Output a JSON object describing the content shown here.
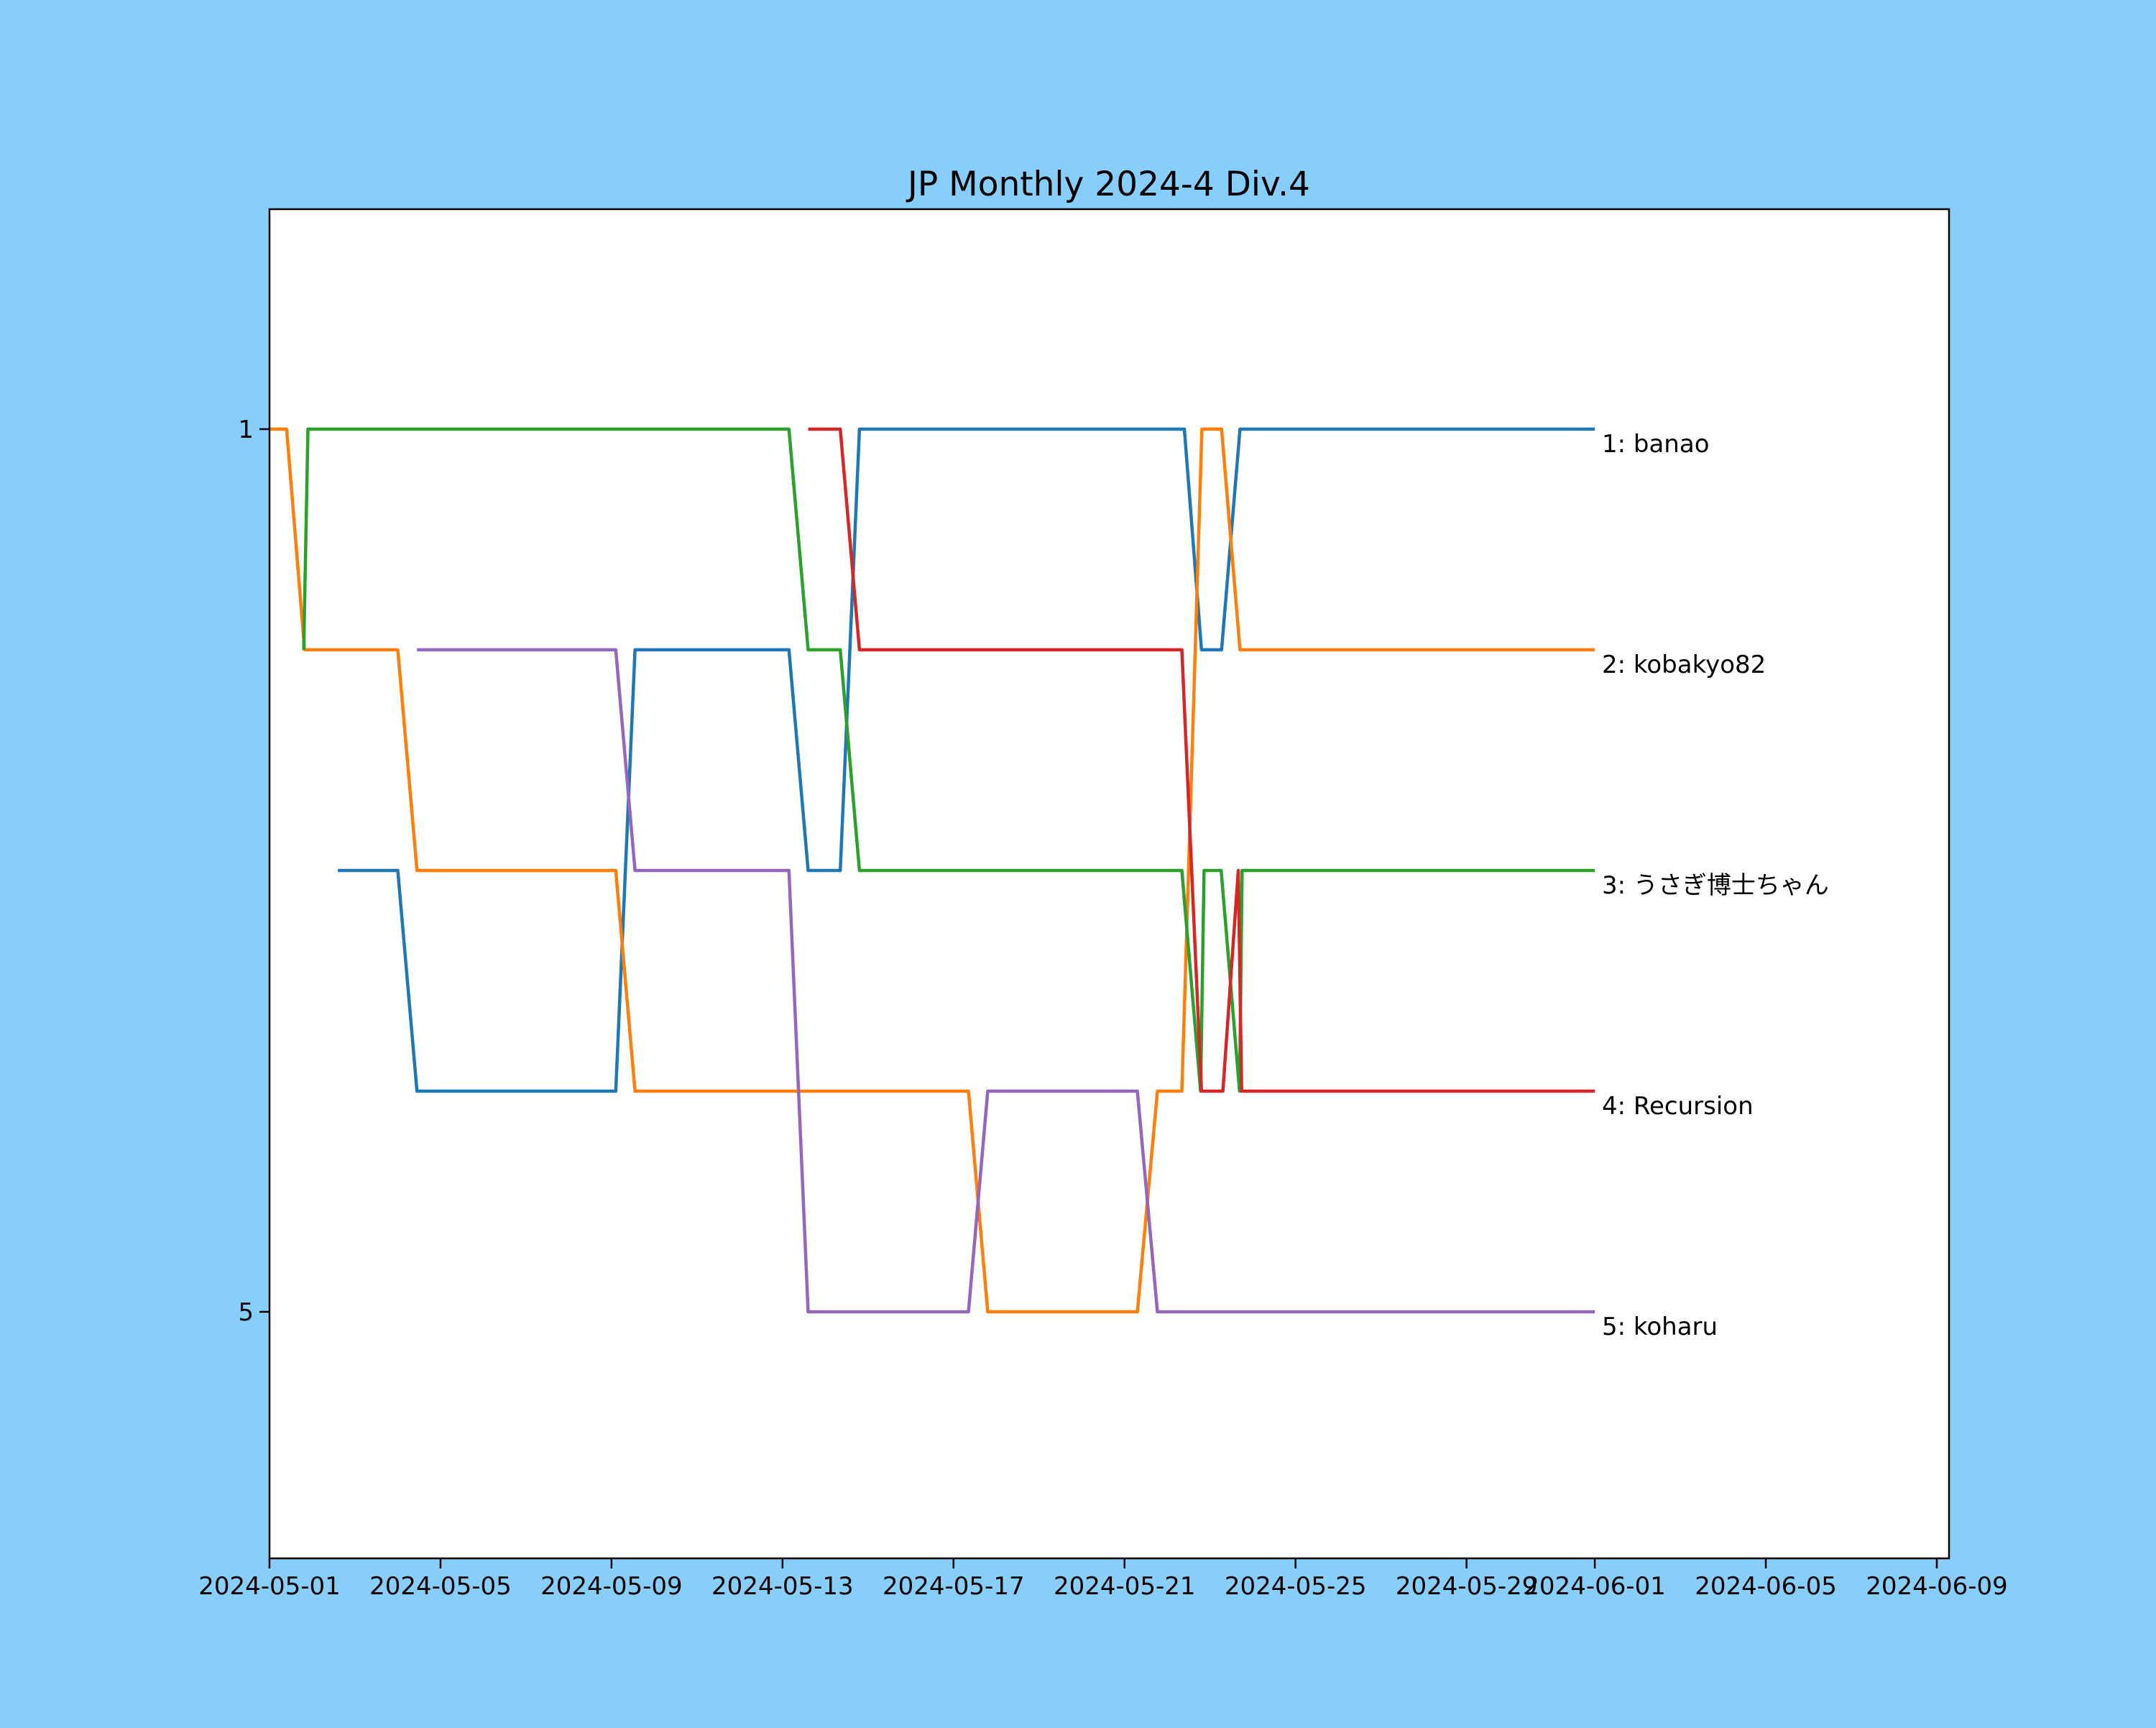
{
  "figure": {
    "background_color": "#87CEFA",
    "plot_background_color": "#ffffff",
    "plot_border_color": "#000000"
  },
  "chart_data": {
    "type": "line",
    "subtype": "bump-rank-chart",
    "title": "JP Monthly 2024-4 Div.4",
    "grid": false,
    "legend_position": "labels-at-line-ends-right",
    "x_axis": {
      "unit": "date",
      "start_date": "2024-05-01",
      "tick_labels": [
        "2024-05-01",
        "2024-05-05",
        "2024-05-09",
        "2024-05-13",
        "2024-05-17",
        "2024-05-21",
        "2024-05-25",
        "2024-05-29",
        "2024-06-01",
        "2024-06-05",
        "2024-06-09"
      ],
      "tick_day_offsets": [
        0,
        4,
        8,
        12,
        16,
        20,
        24,
        28,
        31,
        35,
        39
      ],
      "range_days": [
        0,
        39.3
      ],
      "series_end_day": 31,
      "series_end_date": "2024-06-01"
    },
    "y_axis": {
      "unit": "rank",
      "inverted": true,
      "tick_labels": [
        "1",
        "5"
      ],
      "tick_ranks": [
        1,
        5
      ],
      "rank_range_shown": [
        1,
        5
      ]
    },
    "series": [
      {
        "player": "banao",
        "label": "1: banao",
        "final_rank": 1,
        "color": "#1f77b4",
        "points": [
          [
            1.6,
            3
          ],
          [
            3.0,
            3
          ],
          [
            3.45,
            4
          ],
          [
            8.1,
            4
          ],
          [
            8.55,
            2
          ],
          [
            12.15,
            2
          ],
          [
            12.6,
            3
          ],
          [
            13.35,
            3
          ],
          [
            13.8,
            1
          ],
          [
            21.4,
            1
          ],
          [
            21.8,
            2
          ],
          [
            22.27,
            2
          ],
          [
            22.7,
            1
          ],
          [
            31,
            1
          ]
        ]
      },
      {
        "player": "kobakyo82",
        "label": "2: kobakyo82",
        "final_rank": 2,
        "color": "#ff7f0e",
        "points": [
          [
            0,
            1
          ],
          [
            0.4,
            1
          ],
          [
            0.82,
            2
          ],
          [
            3.0,
            2
          ],
          [
            3.45,
            3
          ],
          [
            8.1,
            3
          ],
          [
            8.55,
            4
          ],
          [
            16.35,
            4
          ],
          [
            16.8,
            5
          ],
          [
            20.3,
            5
          ],
          [
            20.77,
            4
          ],
          [
            21.34,
            4
          ],
          [
            21.81,
            1
          ],
          [
            22.27,
            1
          ],
          [
            22.7,
            2
          ],
          [
            31,
            2
          ]
        ]
      },
      {
        "player": "うさぎ博士ちゃん",
        "label": "3: うさぎ博士ちゃん",
        "final_rank": 3,
        "color": "#2ca02c",
        "points": [
          [
            0.8,
            2
          ],
          [
            0.9,
            1
          ],
          [
            12.15,
            1
          ],
          [
            12.6,
            2
          ],
          [
            13.35,
            2
          ],
          [
            13.8,
            3
          ],
          [
            21.34,
            3
          ],
          [
            21.78,
            4
          ],
          [
            21.86,
            3
          ],
          [
            22.26,
            3
          ],
          [
            22.69,
            4
          ],
          [
            22.75,
            3
          ],
          [
            31,
            3
          ]
        ]
      },
      {
        "player": "Recursion",
        "label": "4: Recursion",
        "final_rank": 4,
        "color": "#d62728",
        "points": [
          [
            12.6,
            1
          ],
          [
            13.35,
            1
          ],
          [
            13.8,
            2
          ],
          [
            21.34,
            2
          ],
          [
            21.8,
            4
          ],
          [
            22.3,
            4
          ],
          [
            22.66,
            3
          ],
          [
            22.74,
            4
          ],
          [
            31,
            4
          ]
        ]
      },
      {
        "player": "koharu",
        "label": "5: koharu",
        "final_rank": 5,
        "color": "#9467bd",
        "points": [
          [
            3.45,
            2
          ],
          [
            8.1,
            2
          ],
          [
            8.55,
            3
          ],
          [
            12.15,
            3
          ],
          [
            12.6,
            5
          ],
          [
            16.35,
            5
          ],
          [
            16.8,
            4
          ],
          [
            20.3,
            4
          ],
          [
            20.77,
            5
          ],
          [
            31,
            5
          ]
        ]
      }
    ]
  }
}
